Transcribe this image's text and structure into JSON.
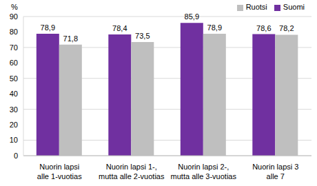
{
  "chart_data": {
    "type": "bar",
    "ylabel": "%",
    "categories": [
      "Nuorin lapsi\nalle 1-vuotias",
      "Nuorin lapsi 1-,\nmutta alle 2-vuotias",
      "Nuorin lapsi 2-,\nmutta alle 3-vuotias",
      "Nuorin lapsi 3\nalle 7"
    ],
    "series": [
      {
        "name": "Suomi",
        "color": "#7030a0",
        "values": [
          78.9,
          78.4,
          85.9,
          78.6
        ],
        "value_labels": [
          "78,9",
          "78,4",
          "85,9",
          "78,6"
        ]
      },
      {
        "name": "Ruotsi",
        "color": "#bfbfbf",
        "values": [
          71.8,
          73.5,
          78.9,
          78.2
        ],
        "value_labels": [
          "71,8",
          "73,5",
          "78,9",
          "78,2"
        ]
      }
    ],
    "ylim": [
      0,
      90
    ],
    "yticks": [
      0,
      10,
      20,
      30,
      40,
      50,
      60,
      70,
      80,
      90
    ],
    "grid": true,
    "legend": "top-right",
    "data_labels": true
  }
}
